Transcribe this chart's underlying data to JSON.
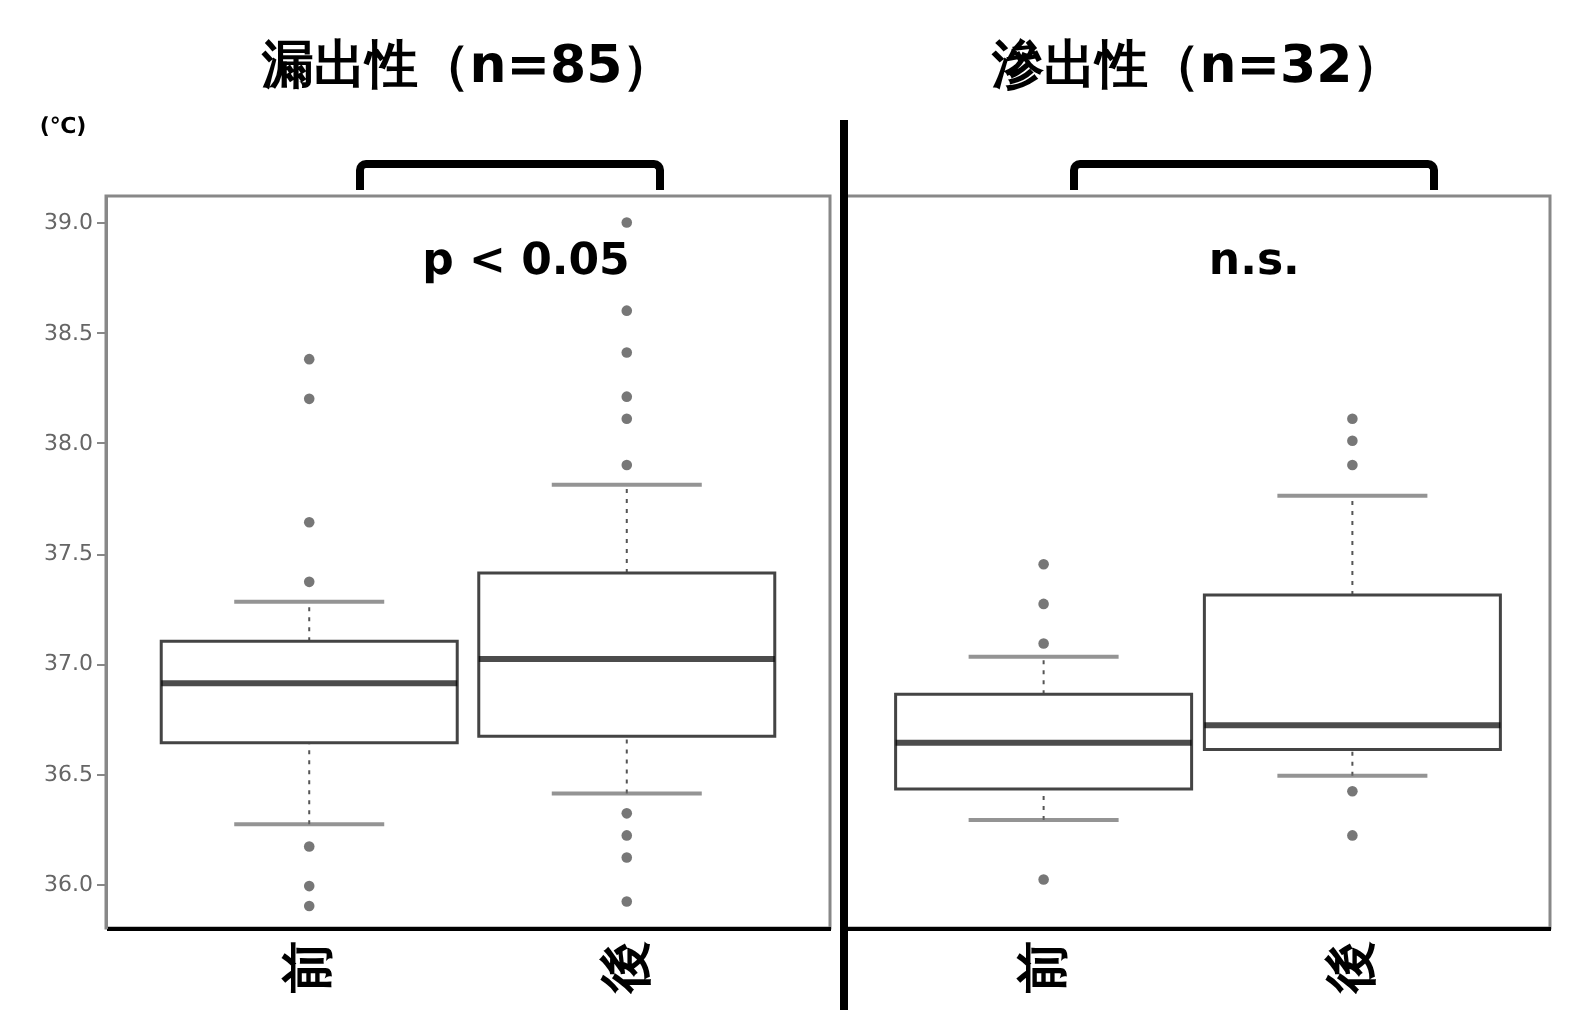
{
  "chart_data": [
    {
      "type": "box",
      "title": "漏出性（n=85）",
      "ylabel": "(℃)",
      "categories": [
        "前",
        "後"
      ],
      "boxes": [
        {
          "low": 36.27,
          "q1": 36.64,
          "median": 36.91,
          "q3": 37.1,
          "high": 37.28,
          "outliers": [
            38.38,
            38.2,
            37.64,
            37.37,
            36.17,
            35.99,
            35.9
          ]
        },
        {
          "low": 36.41,
          "q1": 36.67,
          "median": 37.02,
          "q3": 37.41,
          "high": 37.81,
          "outliers": [
            39.0,
            38.6,
            38.41,
            38.21,
            38.11,
            37.9,
            36.32,
            36.22,
            36.12,
            35.92
          ]
        }
      ],
      "ylim": [
        35.8,
        39.12
      ],
      "yticks": [
        {
          "value": 36,
          "label": "36.0"
        },
        {
          "value": 36.5,
          "label": "36.5"
        },
        {
          "value": 37,
          "label": "37.0"
        },
        {
          "value": 37.5,
          "label": "37.5"
        },
        {
          "value": 38,
          "label": "38.0"
        },
        {
          "value": 38.5,
          "label": "38.5"
        },
        {
          "value": 39,
          "label": "39.0"
        }
      ],
      "annotations": [
        "p < 0.05"
      ]
    },
    {
      "type": "box",
      "title": "滲出性（n=32）",
      "categories": [
        "前",
        "後"
      ],
      "boxes": [
        {
          "low": 36.29,
          "q1": 36.43,
          "median": 36.64,
          "q3": 36.86,
          "high": 37.03,
          "outliers": [
            37.45,
            37.27,
            37.09,
            36.02
          ]
        },
        {
          "low": 36.49,
          "q1": 36.61,
          "median": 36.72,
          "q3": 37.31,
          "high": 37.76,
          "outliers": [
            38.11,
            38.01,
            37.9,
            36.42,
            36.22
          ]
        }
      ],
      "ylim": [
        35.8,
        39.12
      ],
      "tick_labels": "x",
      "annotations": [
        "n.s."
      ]
    }
  ]
}
